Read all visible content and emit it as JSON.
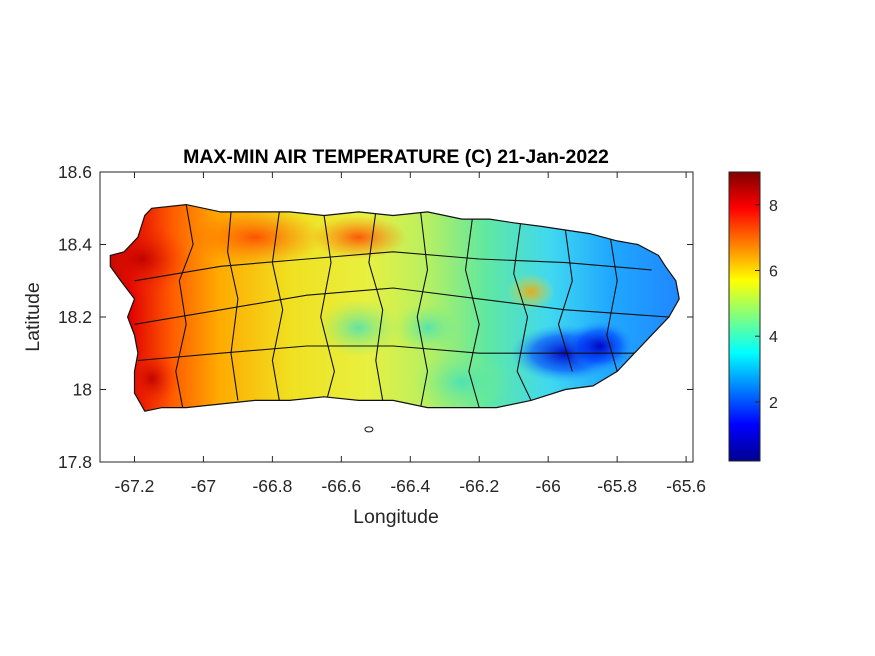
{
  "chart_data": {
    "type": "heatmap",
    "title": "MAX-MIN AIR TEMPERATURE (C) 21-Jan-2022",
    "xlabel": "Longitude",
    "ylabel": "Latitude",
    "xlim": [
      -67.3,
      -65.58
    ],
    "ylim": [
      17.8,
      18.6
    ],
    "x_ticks": [
      "-67.2",
      "-67",
      "-66.8",
      "-66.6",
      "-66.4",
      "-66.2",
      "-66",
      "-65.8",
      "-65.6"
    ],
    "y_ticks": [
      "17.8",
      "18",
      "18.2",
      "18.4",
      "18.6"
    ],
    "colorbar": {
      "colormap": "jet",
      "range": [
        0.2,
        9.0
      ],
      "ticks": [
        "2",
        "4",
        "6",
        "8"
      ]
    },
    "region": "Puerto Rico",
    "field_description_values": [
      {
        "lon": -67.22,
        "lat": 18.35,
        "value": 8.8
      },
      {
        "lon": -67.15,
        "lat": 18.05,
        "value": 8.5
      },
      {
        "lon": -66.9,
        "lat": 18.4,
        "value": 7.8
      },
      {
        "lon": -66.6,
        "lat": 18.42,
        "value": 7.0
      },
      {
        "lon": -66.75,
        "lat": 18.1,
        "value": 6.3
      },
      {
        "lon": -66.45,
        "lat": 18.25,
        "value": 6.0
      },
      {
        "lon": -66.55,
        "lat": 18.15,
        "value": 4.6
      },
      {
        "lon": -66.2,
        "lat": 18.05,
        "value": 4.3
      },
      {
        "lon": -66.05,
        "lat": 18.27,
        "value": 6.5
      },
      {
        "lon": -65.9,
        "lat": 18.3,
        "value": 3.4
      },
      {
        "lon": -65.95,
        "lat": 18.1,
        "value": 0.6
      },
      {
        "lon": -65.72,
        "lat": 18.33,
        "value": 2.8
      }
    ]
  }
}
